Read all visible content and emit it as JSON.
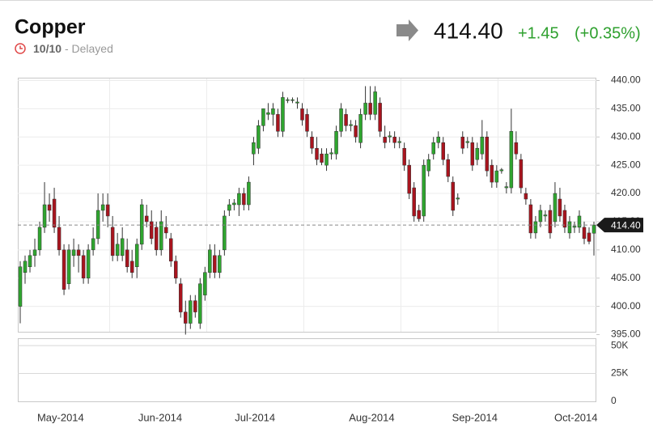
{
  "header": {
    "title": "Copper",
    "date": "10/10",
    "status": "- Delayed",
    "change": "+1.45",
    "change_pct": "(+0.35%)"
  },
  "chart_data": {
    "type": "candlestick",
    "last": {
      "value": 414.4,
      "label": "414.40"
    },
    "up_color": "#2fa52f",
    "down_color": "#a8141e",
    "ylim": [
      395.5,
      440.5
    ],
    "yticks": [
      {
        "value": 395,
        "label": "395.00"
      },
      {
        "value": 400,
        "label": "400.00"
      },
      {
        "value": 405,
        "label": "405.00"
      },
      {
        "value": 410,
        "label": "410.00"
      },
      {
        "value": 415,
        "label": "415.00"
      },
      {
        "value": 420,
        "label": "420.00"
      },
      {
        "value": 425,
        "label": "425.00"
      },
      {
        "value": 430,
        "label": "430.00"
      },
      {
        "value": 435,
        "label": "435.00"
      },
      {
        "value": 440,
        "label": "440.00"
      }
    ],
    "y2lim": [
      0,
      56600
    ],
    "y2ticks": [
      0,
      {
        "value": 25000,
        "label": "25K"
      },
      {
        "value": 50000,
        "label": "50K"
      }
    ],
    "xticks": [
      {
        "value": 8.3,
        "label": "May-2014"
      },
      {
        "value": 28.8,
        "label": "Jun-2014"
      },
      {
        "value": 48.3,
        "label": "Jul-2014"
      },
      {
        "value": 72.3,
        "label": "Aug-2014"
      },
      {
        "value": 93.5,
        "label": "Sep-2014"
      },
      {
        "value": 114.3,
        "label": "Oct-2014"
      }
    ],
    "candles": [
      {
        "open": 400,
        "high": 408,
        "low": 397,
        "close": 407
      },
      {
        "open": 406,
        "high": 409,
        "low": 404,
        "close": 408
      },
      {
        "open": 407,
        "high": 410,
        "low": 406,
        "close": 409
      },
      {
        "open": 409,
        "high": 412,
        "low": 407,
        "close": 410
      },
      {
        "open": 410,
        "high": 415,
        "low": 409,
        "close": 414
      },
      {
        "open": 414,
        "high": 422,
        "low": 413,
        "close": 418
      },
      {
        "open": 418,
        "high": 420,
        "low": 415,
        "close": 417
      },
      {
        "open": 419,
        "high": 421,
        "low": 413,
        "close": 414
      },
      {
        "open": 414,
        "high": 416,
        "low": 409,
        "close": 410
      },
      {
        "open": 410,
        "high": 411,
        "low": 402,
        "close": 403
      },
      {
        "open": 404,
        "high": 411,
        "low": 403,
        "close": 410
      },
      {
        "open": 409,
        "high": 412,
        "low": 407,
        "close": 410
      },
      {
        "open": 410,
        "high": 411,
        "low": 406,
        "close": 409
      },
      {
        "open": 409,
        "high": 410,
        "low": 404,
        "close": 405
      },
      {
        "open": 405,
        "high": 411,
        "low": 404,
        "close": 410
      },
      {
        "open": 410,
        "high": 414,
        "low": 409,
        "close": 412
      },
      {
        "open": 412,
        "high": 420,
        "low": 411,
        "close": 417
      },
      {
        "open": 417,
        "high": 420,
        "low": 415,
        "close": 418
      },
      {
        "open": 418,
        "high": 420,
        "low": 414,
        "close": 416
      },
      {
        "open": 414,
        "high": 416,
        "low": 408,
        "close": 409
      },
      {
        "open": 409,
        "high": 413,
        "low": 408,
        "close": 411
      },
      {
        "open": 409,
        "high": 414,
        "low": 408,
        "close": 412
      },
      {
        "open": 410,
        "high": 412,
        "low": 406,
        "close": 407
      },
      {
        "open": 408,
        "high": 410,
        "low": 405,
        "close": 406
      },
      {
        "open": 407,
        "high": 412,
        "low": 405,
        "close": 411
      },
      {
        "open": 411,
        "high": 419,
        "low": 410,
        "close": 418
      },
      {
        "open": 416,
        "high": 418,
        "low": 414,
        "close": 415
      },
      {
        "open": 415,
        "high": 417,
        "low": 411,
        "close": 412
      },
      {
        "open": 414,
        "high": 415,
        "low": 409,
        "close": 410
      },
      {
        "open": 410,
        "high": 417,
        "low": 409,
        "close": 415
      },
      {
        "open": 414,
        "high": 416,
        "low": 412,
        "close": 413
      },
      {
        "open": 412,
        "high": 413,
        "low": 407,
        "close": 408
      },
      {
        "open": 408,
        "high": 409,
        "low": 404,
        "close": 405
      },
      {
        "open": 404,
        "high": 405,
        "low": 398,
        "close": 399
      },
      {
        "open": 399,
        "high": 401,
        "low": 395,
        "close": 397
      },
      {
        "open": 397,
        "high": 402,
        "low": 396,
        "close": 401
      },
      {
        "open": 401,
        "high": 402,
        "low": 398,
        "close": 399
      },
      {
        "open": 397,
        "high": 405,
        "low": 396,
        "close": 404
      },
      {
        "open": 402,
        "high": 407,
        "low": 401,
        "close": 406
      },
      {
        "open": 406,
        "high": 411,
        "low": 405,
        "close": 410
      },
      {
        "open": 409,
        "high": 411,
        "low": 405,
        "close": 406
      },
      {
        "open": 406,
        "high": 410,
        "low": 405,
        "close": 409
      },
      {
        "open": 410,
        "high": 417,
        "low": 409,
        "close": 416
      },
      {
        "open": 417,
        "high": 419,
        "low": 416,
        "close": 418
      },
      {
        "open": 418,
        "high": 419,
        "low": 417,
        "close": 418.3
      },
      {
        "open": 418,
        "high": 421,
        "low": 416,
        "close": 420
      },
      {
        "open": 420,
        "high": 421,
        "low": 417,
        "close": 418
      },
      {
        "open": 418,
        "high": 423,
        "low": 417,
        "close": 422
      },
      {
        "open": 427,
        "high": 430,
        "low": 425,
        "close": 429
      },
      {
        "open": 428,
        "high": 433,
        "low": 427,
        "close": 432
      },
      {
        "open": 432,
        "high": 435,
        "low": 431,
        "close": 435
      },
      {
        "open": 434,
        "high": 436,
        "low": 433,
        "close": 434.3
      },
      {
        "open": 434,
        "high": 436,
        "low": 432,
        "close": 435
      },
      {
        "open": 434,
        "high": 435,
        "low": 430,
        "close": 431
      },
      {
        "open": 431,
        "high": 438,
        "low": 430,
        "close": 437
      },
      {
        "open": 436.5,
        "high": 437,
        "low": 436,
        "close": 436.6
      },
      {
        "open": 436.5,
        "high": 437,
        "low": 436,
        "close": 436.6
      },
      {
        "open": 436,
        "high": 437,
        "low": 435,
        "close": 436.2
      },
      {
        "open": 435,
        "high": 436,
        "low": 432,
        "close": 433
      },
      {
        "open": 434,
        "high": 435,
        "low": 430,
        "close": 431
      },
      {
        "open": 430,
        "high": 431,
        "low": 427,
        "close": 428
      },
      {
        "open": 428,
        "high": 430,
        "low": 425,
        "close": 426
      },
      {
        "open": 427,
        "high": 428,
        "low": 425,
        "close": 425.5
      },
      {
        "open": 425,
        "high": 428,
        "low": 424,
        "close": 427
      },
      {
        "open": 427,
        "high": 428,
        "low": 426,
        "close": 427.2
      },
      {
        "open": 427,
        "high": 432,
        "low": 426,
        "close": 431
      },
      {
        "open": 431,
        "high": 436,
        "low": 430,
        "close": 435
      },
      {
        "open": 434,
        "high": 435,
        "low": 431,
        "close": 432
      },
      {
        "open": 432,
        "high": 433,
        "low": 431,
        "close": 432.2
      },
      {
        "open": 432,
        "high": 433,
        "low": 429,
        "close": 430
      },
      {
        "open": 429,
        "high": 435,
        "low": 428,
        "close": 434
      },
      {
        "open": 434,
        "high": 439,
        "low": 433,
        "close": 436
      },
      {
        "open": 436,
        "high": 439,
        "low": 433,
        "close": 434
      },
      {
        "open": 434,
        "high": 439,
        "low": 433,
        "close": 438
      },
      {
        "open": 436,
        "high": 437,
        "low": 430,
        "close": 431
      },
      {
        "open": 430,
        "high": 432,
        "low": 428,
        "close": 429
      },
      {
        "open": 430,
        "high": 431,
        "low": 429,
        "close": 430.2
      },
      {
        "open": 430,
        "high": 431,
        "low": 428,
        "close": 429
      },
      {
        "open": 429,
        "high": 430,
        "low": 428,
        "close": 429.2
      },
      {
        "open": 428,
        "high": 429,
        "low": 424,
        "close": 425
      },
      {
        "open": 425,
        "high": 426,
        "low": 419,
        "close": 420
      },
      {
        "open": 421,
        "high": 422,
        "low": 415,
        "close": 416
      },
      {
        "open": 417,
        "high": 418,
        "low": 415,
        "close": 415.5
      },
      {
        "open": 416,
        "high": 426,
        "low": 415,
        "close": 425
      },
      {
        "open": 424,
        "high": 427,
        "low": 423,
        "close": 426
      },
      {
        "open": 427,
        "high": 430,
        "low": 426,
        "close": 429
      },
      {
        "open": 429,
        "high": 431,
        "low": 428,
        "close": 430
      },
      {
        "open": 429,
        "high": 430,
        "low": 425,
        "close": 426
      },
      {
        "open": 426,
        "high": 427,
        "low": 422,
        "close": 423
      },
      {
        "open": 422,
        "high": 423,
        "low": 416,
        "close": 417
      },
      {
        "open": 419,
        "high": 420,
        "low": 418,
        "close": 419.2
      },
      {
        "open": 430,
        "high": 431,
        "low": 427,
        "close": 428
      },
      {
        "open": 429,
        "high": 430,
        "low": 428,
        "close": 429.2
      },
      {
        "open": 429,
        "high": 430,
        "low": 424,
        "close": 425
      },
      {
        "open": 426,
        "high": 429,
        "low": 425,
        "close": 428
      },
      {
        "open": 427,
        "high": 433,
        "low": 426,
        "close": 430
      },
      {
        "open": 430,
        "high": 431,
        "low": 423,
        "close": 424
      },
      {
        "open": 425,
        "high": 426,
        "low": 421,
        "close": 422
      },
      {
        "open": 422,
        "high": 425,
        "low": 421,
        "close": 424
      },
      {
        "open": 424,
        "high": 424.5,
        "low": 423.5,
        "close": 424.2
      },
      {
        "open": 421,
        "high": 422,
        "low": 420,
        "close": 421.2
      },
      {
        "open": 421,
        "high": 435,
        "low": 420,
        "close": 431
      },
      {
        "open": 429,
        "high": 431,
        "low": 426,
        "close": 427
      },
      {
        "open": 426,
        "high": 427,
        "low": 420,
        "close": 421
      },
      {
        "open": 420,
        "high": 421,
        "low": 418,
        "close": 419
      },
      {
        "open": 418,
        "high": 419,
        "low": 412,
        "close": 413
      },
      {
        "open": 413,
        "high": 416,
        "low": 412,
        "close": 415
      },
      {
        "open": 415,
        "high": 418,
        "low": 414,
        "close": 417
      },
      {
        "open": 416,
        "high": 417,
        "low": 415,
        "close": 416.2
      },
      {
        "open": 417,
        "high": 418,
        "low": 412,
        "close": 413
      },
      {
        "open": 415,
        "high": 422,
        "low": 414,
        "close": 420
      },
      {
        "open": 419,
        "high": 421,
        "low": 415,
        "close": 416
      },
      {
        "open": 417,
        "high": 418,
        "low": 413,
        "close": 414
      },
      {
        "open": 413,
        "high": 416,
        "low": 412,
        "close": 415
      },
      {
        "open": 414,
        "high": 415,
        "low": 413,
        "close": 414.2
      },
      {
        "open": 414,
        "high": 417,
        "low": 413,
        "close": 416
      },
      {
        "open": 414,
        "high": 415,
        "low": 411,
        "close": 412
      },
      {
        "open": 413,
        "high": 414,
        "low": 411,
        "close": 411.5
      },
      {
        "open": 412.95,
        "high": 415,
        "low": 409,
        "close": 414.4
      }
    ]
  }
}
